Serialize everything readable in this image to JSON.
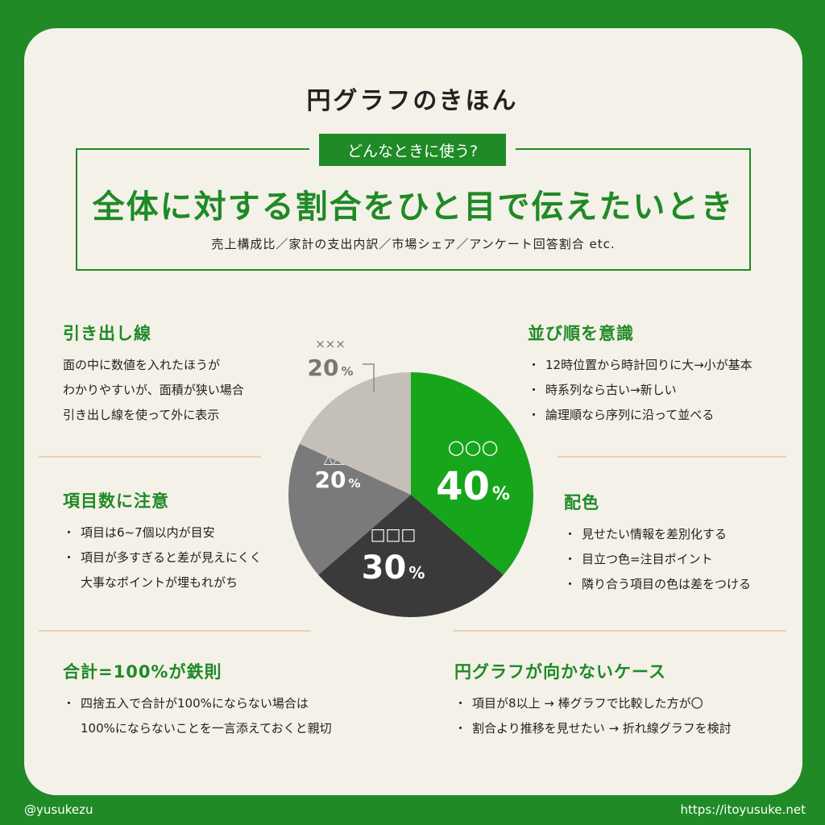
{
  "title": "円グラフのきほん",
  "usage": {
    "tag": "どんなときに使う?",
    "headline": "全体に対する割合をひと目で伝えたいとき",
    "examples": "売上構成比／家計の支出内訳／市場シェア／アンケート回答割合 etc."
  },
  "sections": {
    "leader_lines": {
      "title": "引き出し線",
      "lines": [
        "面の中に数値を入れたほうが",
        "わかりやすいが、面積が狭い場合",
        "引き出し線を使って外に表示"
      ]
    },
    "item_count": {
      "title": "項目数に注意",
      "bullet1": "項目は6~7個以内が目安",
      "bullet2_line1": "項目が多すぎると差が見えにくく",
      "bullet2_line2": "大事なポイントが埋もれがち"
    },
    "total": {
      "title": "合計=100%が鉄則",
      "bullet_line1": "四捨五入で合計が100%にならない場合は",
      "bullet_line2": "100%にならないことを一言添えておくと親切"
    },
    "order": {
      "title": "並び順を意識",
      "bullets": [
        "12時位置から時計回りに大→小が基本",
        "時系列なら古い→新しい",
        "論理順なら序列に沿って並べる"
      ]
    },
    "color": {
      "title": "配色",
      "bullets": [
        "見せたい情報を差別化する",
        "目立つ色=注目ポイント",
        "隣り合う項目の色は差をつける"
      ]
    },
    "not_suitable": {
      "title": "円グラフが向かないケース",
      "bullets": [
        "項目が8以上 → 棒グラフで比較した方が〇",
        "割合より推移を見せたい → 折れ線グラフを検討"
      ]
    }
  },
  "chart_data": {
    "type": "pie",
    "slices": [
      {
        "label": "○○○",
        "value": 40,
        "color": "#17a51c"
      },
      {
        "label": "□□□",
        "value": 30,
        "color": "#3a3a3a"
      },
      {
        "label": "△△△",
        "value": 20,
        "color": "#7a7a7a"
      },
      {
        "label": "×××",
        "value": 20,
        "color": "#c4c0b7"
      }
    ],
    "start_angle": "12 o'clock",
    "direction": "clockwise",
    "percent_sign": "%"
  },
  "footer": {
    "handle": "@yusukezu",
    "url": "https://itoyusuke.net"
  }
}
